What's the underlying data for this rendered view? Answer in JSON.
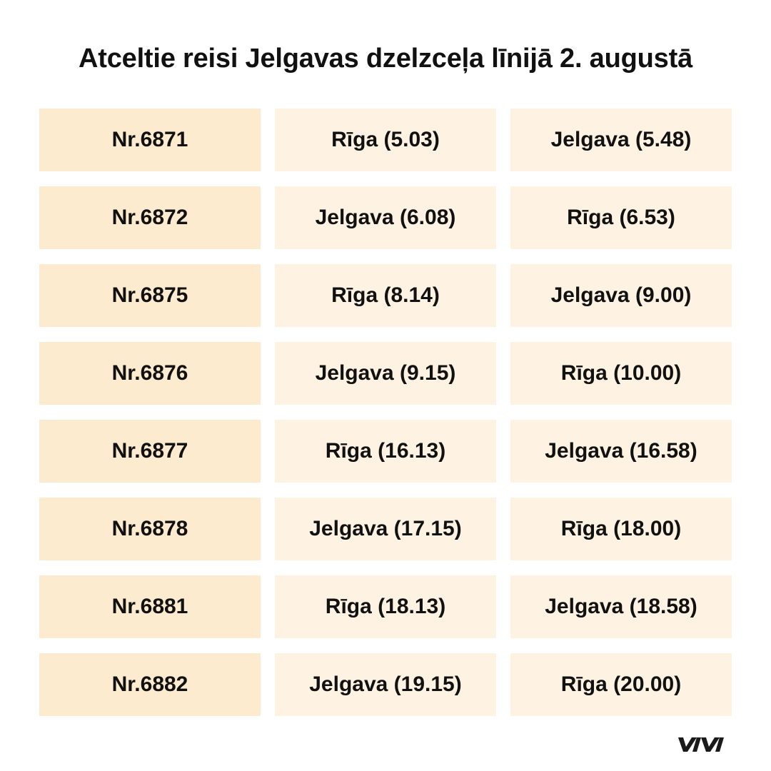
{
  "title": "Atceltie reisi Jelgavas dzelzceļa līnijā 2. augustā",
  "rows": [
    {
      "train": "Nr.6871",
      "from": "Rīga (5.03)",
      "to": "Jelgava (5.48)"
    },
    {
      "train": "Nr.6872",
      "from": "Jelgava (6.08)",
      "to": "Rīga (6.53)"
    },
    {
      "train": "Nr.6875",
      "from": "Rīga (8.14)",
      "to": "Jelgava (9.00)"
    },
    {
      "train": "Nr.6876",
      "from": "Jelgava (9.15)",
      "to": "Rīga (10.00)"
    },
    {
      "train": "Nr.6877",
      "from": "Rīga (16.13)",
      "to": "Jelgava (16.58)"
    },
    {
      "train": "Nr.6878",
      "from": "Jelgava (17.15)",
      "to": "Rīga (18.00)"
    },
    {
      "train": "Nr.6881",
      "from": "Rīga (18.13)",
      "to": "Jelgava (18.58)"
    },
    {
      "train": "Nr.6882",
      "from": "Jelgava (19.15)",
      "to": "Rīga (20.00)"
    }
  ],
  "colors": {
    "train_cell": "#fdebd0",
    "stop_cell": "#fef3e2",
    "text": "#111111",
    "logo": "#1a1a1a"
  },
  "logo": {
    "icon": "vivi-logo-icon",
    "text": "VIVI"
  }
}
